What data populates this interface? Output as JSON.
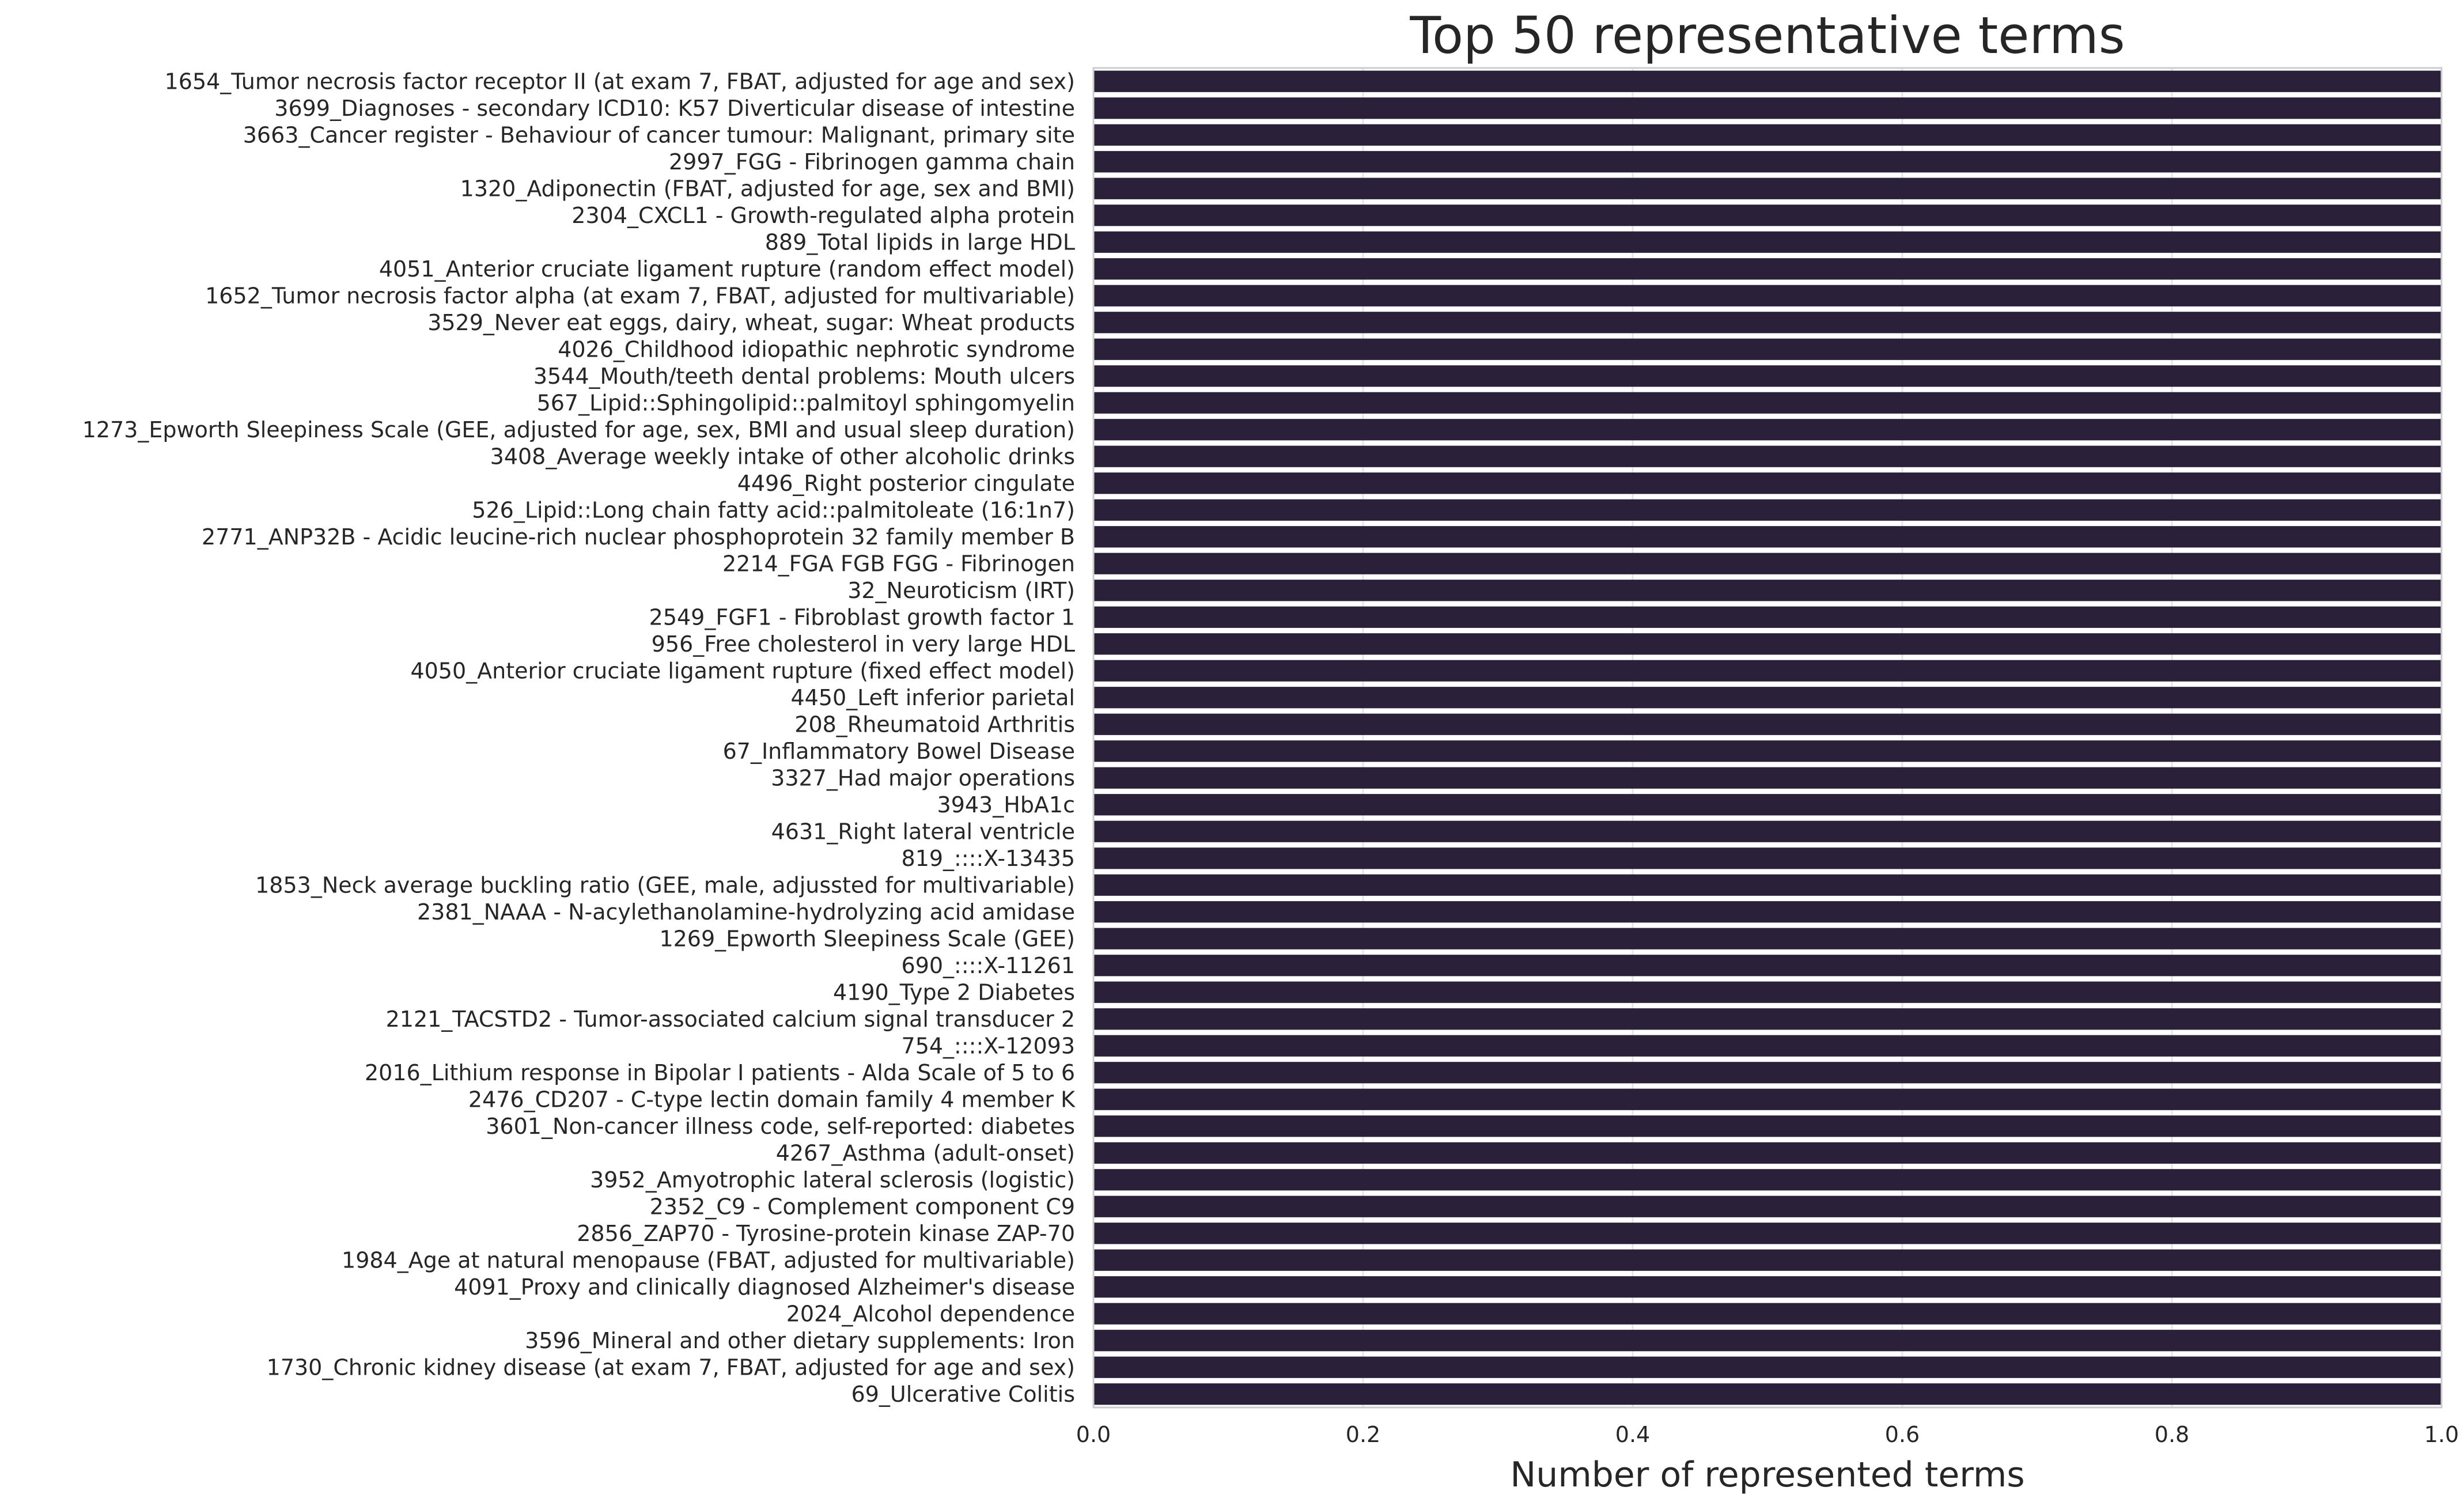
{
  "chart_data": {
    "type": "bar",
    "orientation": "horizontal",
    "title": "Top 50 representative terms",
    "xlabel": "Number of represented terms",
    "ylabel": "",
    "xlim": [
      0,
      1
    ],
    "xticks": [
      "0.0",
      "0.2",
      "0.4",
      "0.6",
      "0.8",
      "1.0"
    ],
    "grid": true,
    "bar_color": "#2b2039",
    "categories": [
      "1654_Tumor necrosis factor receptor II (at exam 7, FBAT, adjusted for age and sex)",
      "3699_Diagnoses - secondary ICD10: K57 Diverticular disease of intestine",
      "3663_Cancer register - Behaviour of cancer tumour: Malignant, primary site",
      "2997_FGG - Fibrinogen gamma chain",
      "1320_Adiponectin (FBAT, adjusted for age, sex and BMI)",
      "2304_CXCL1 - Growth-regulated alpha protein",
      "889_Total lipids in large HDL",
      "4051_Anterior cruciate ligament rupture (random effect model)",
      "1652_Tumor necrosis factor alpha (at exam 7, FBAT, adjusted for multivariable)",
      "3529_Never eat eggs, dairy, wheat, sugar: Wheat products",
      "4026_Childhood idiopathic nephrotic syndrome",
      "3544_Mouth/teeth dental problems: Mouth ulcers",
      "567_Lipid::Sphingolipid::palmitoyl sphingomyelin",
      "1273_Epworth Sleepiness Scale (GEE, adjusted for age, sex, BMI and usual sleep duration)",
      "3408_Average weekly intake of other alcoholic drinks",
      "4496_Right posterior cingulate",
      "526_Lipid::Long chain fatty acid::palmitoleate (16:1n7)",
      "2771_ANP32B - Acidic leucine-rich nuclear phosphoprotein 32 family member B",
      "2214_FGA FGB FGG - Fibrinogen",
      "32_Neuroticism (IRT)",
      "2549_FGF1 - Fibroblast growth factor 1",
      "956_Free cholesterol in very large HDL",
      "4050_Anterior cruciate ligament rupture (fixed effect model)",
      "4450_Left inferior parietal",
      "208_Rheumatoid Arthritis",
      "67_Inflammatory Bowel Disease",
      "3327_Had major operations",
      "3943_HbA1c",
      "4631_Right lateral ventricle",
      "819_::::X-13435",
      "1853_Neck average buckling ratio (GEE, male, adjussted for multivariable)",
      "2381_NAAA - N-acylethanolamine-hydrolyzing acid amidase",
      "1269_Epworth Sleepiness Scale (GEE)",
      "690_::::X-11261",
      "4190_Type 2 Diabetes",
      "2121_TACSTD2 - Tumor-associated calcium signal transducer 2",
      "754_::::X-12093",
      "2016_Lithium response in Bipolar I patients - Alda Scale of 5 to 6",
      "2476_CD207 - C-type lectin domain family 4 member K",
      "3601_Non-cancer illness code, self-reported: diabetes",
      "4267_Asthma (adult-onset)",
      "3952_Amyotrophic lateral sclerosis (logistic)",
      "2352_C9 - Complement component C9",
      "2856_ZAP70 - Tyrosine-protein kinase ZAP-70",
      "1984_Age at natural menopause (FBAT, adjusted for multivariable)",
      "4091_Proxy and clinically diagnosed Alzheimer's disease",
      "2024_Alcohol dependence",
      "3596_Mineral and other dietary supplements: Iron",
      "1730_Chronic kidney disease (at exam 7, FBAT, adjusted for age and sex)",
      "69_Ulcerative Colitis"
    ],
    "values": [
      1,
      1,
      1,
      1,
      1,
      1,
      1,
      1,
      1,
      1,
      1,
      1,
      1,
      1,
      1,
      1,
      1,
      1,
      1,
      1,
      1,
      1,
      1,
      1,
      1,
      1,
      1,
      1,
      1,
      1,
      1,
      1,
      1,
      1,
      1,
      1,
      1,
      1,
      1,
      1,
      1,
      1,
      1,
      1,
      1,
      1,
      1,
      1,
      1,
      1
    ]
  }
}
